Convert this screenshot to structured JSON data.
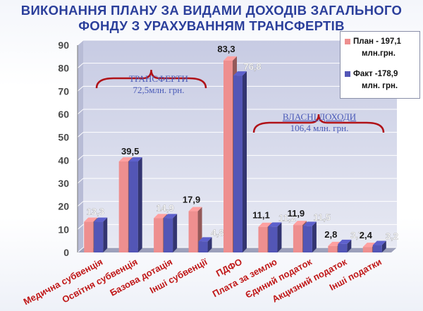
{
  "title": {
    "line1": "ВИКОНАННЯ ПЛАНУ ЗА ВИДАМИ ДОХОДІВ ЗАГАЛЬНОГО",
    "line2": "ФОНДУ  З УРАХУВАННЯМ ТРАНСФЕРТІВ"
  },
  "legend": {
    "plan_line1": "План - 197,1",
    "plan_line2": "млн.грн.",
    "fact_line1": "Факт -178,9",
    "fact_line2": "млн. грн."
  },
  "annotations": {
    "transfers_title": "ТРАНСФЕРТИ",
    "transfers_value": "72,5млн. грн.",
    "own_title": "ВЛАСНІ ДОХОДИ",
    "own_value": "106,4 млн. грн."
  },
  "colors": {
    "plan": "#ee8f8f",
    "fact": "#5356b6",
    "title": "#2b3f9b",
    "brace": "#b01218"
  },
  "chart_data": {
    "type": "bar",
    "categories": [
      "Медична субвенція",
      "Освітня субвенція",
      "Базова дотація",
      "Інші субвенції",
      "ПДФО",
      "Плата за землю",
      "Єдиний податок",
      "Акцизний податок",
      "Інші податки"
    ],
    "series": [
      {
        "name": "План - 197,1 млн.грн.",
        "values": [
          13.3,
          39.5,
          14.9,
          17.9,
          83.3,
          11.1,
          11.9,
          2.8,
          2.4
        ]
      },
      {
        "name": "Факт -178,9 млн. грн.",
        "values": [
          13.3,
          39.5,
          14.9,
          4.8,
          76.8,
          11.2,
          11.5,
          3.7,
          3.2
        ]
      }
    ],
    "value_labels": [
      [
        "13,3"
      ],
      [
        "39,5"
      ],
      [
        "14,9"
      ],
      [
        "17,9",
        "4,8"
      ],
      [
        "83,3",
        "76,8"
      ],
      [
        "11,1",
        "11,2"
      ],
      [
        "11,9",
        "11,5"
      ],
      [
        "2,8",
        "3,7"
      ],
      [
        "2,4",
        "3,2"
      ]
    ],
    "y_ticks": [
      "0",
      "10",
      "20",
      "30",
      "40",
      "50",
      "60",
      "70",
      "80",
      "90"
    ],
    "ylim": [
      0,
      90
    ],
    "grid": true,
    "legend_position": "top-right"
  }
}
